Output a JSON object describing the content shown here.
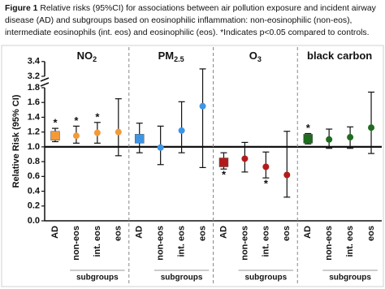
{
  "chart_data": {
    "type": "forest",
    "caption_label": "Figure 1",
    "caption": "Relative risks (95%CI) for associations between air pollution exposure and incident airway disease (AD) and subgroups based on eosinophilic inflammation: non-eosinophilic (non-eos), intermediate eosinophils (int. eos) and eosinophilic (eos). *Indicates p<0.05 compared to controls.",
    "y_label": "Relative  Risk  (95% CI)",
    "categories": [
      "AD",
      "non-eos",
      "int. eos",
      "eos"
    ],
    "markers": [
      "square",
      "circle",
      "circle",
      "circle"
    ],
    "group_label": "subgroups",
    "ylim": [
      0,
      3.4
    ],
    "ybreak": [
      1.8,
      3.2
    ],
    "yticks": [
      {
        "value": 0,
        "label": "0.0"
      },
      0.2,
      0.4,
      0.6,
      0.8,
      {
        "value": 1,
        "label": "1.0"
      },
      1.2,
      1.4,
      1.6,
      1.8,
      3.2,
      3.4
    ],
    "reference_line": 1,
    "panels": [
      {
        "title": "NO",
        "title_sub": "2",
        "color": "#f29a3a",
        "values": [
          1.15,
          1.15,
          1.19,
          1.2
        ],
        "lower": [
          1.07,
          1.05,
          1.05,
          0.88
        ],
        "upper": [
          1.25,
          1.28,
          1.33,
          1.65
        ],
        "annotations": [
          "*",
          "*",
          "*",
          null
        ]
      },
      {
        "title": "PM",
        "title_sub": "2.5",
        "color": "#3d95e6",
        "values": [
          1.11,
          0.99,
          1.22,
          1.55
        ],
        "lower": [
          0.92,
          0.76,
          0.92,
          0.72
        ],
        "upper": [
          1.32,
          1.28,
          1.61,
          3.3
        ],
        "annotations": [
          null,
          null,
          null,
          null
        ]
      },
      {
        "title": "O",
        "title_sub": "3",
        "color": "#b31b1b",
        "values": [
          0.79,
          0.84,
          0.73,
          0.62
        ],
        "lower": [
          0.7,
          0.66,
          0.58,
          0.32
        ],
        "upper": [
          0.92,
          1.06,
          0.93,
          1.21
        ],
        "annotations": [
          "*",
          null,
          "*",
          null
        ]
      },
      {
        "title": "black carbon",
        "title_sub": null,
        "color": "#1f6b1f",
        "values": [
          1.11,
          1.1,
          1.13,
          1.26
        ],
        "lower": [
          1.04,
          0.98,
          0.98,
          0.91
        ],
        "upper": [
          1.18,
          1.24,
          1.27,
          1.74
        ],
        "annotations": [
          "*",
          null,
          null,
          null
        ]
      }
    ]
  }
}
